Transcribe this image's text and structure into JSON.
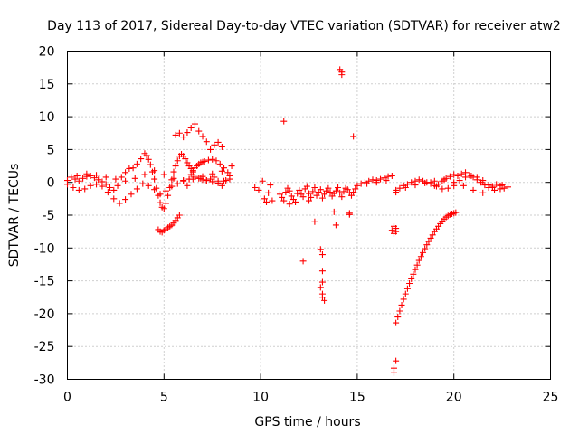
{
  "chart_data": {
    "type": "scatter",
    "title": "Day 113 of 2017, Sidereal Day-to-day VTEC variation (SDTVAR) for receiver atw2",
    "xlabel": "GPS time / hours",
    "ylabel": "SDTVAR / TECUs",
    "xlim": [
      0,
      25
    ],
    "ylim": [
      -30,
      20
    ],
    "xticks": [
      0,
      5,
      10,
      15,
      20,
      25
    ],
    "yticks": [
      -30,
      -25,
      -20,
      -15,
      -10,
      -5,
      0,
      5,
      10,
      15,
      20
    ],
    "grid": true,
    "marker": "+",
    "color": "#ff0000",
    "series": [
      {
        "name": "SDTVAR",
        "x": [
          0.0,
          0.2,
          0.4,
          0.6,
          0.8,
          1.0,
          1.2,
          1.4,
          1.6,
          1.8,
          2.0,
          2.2,
          2.4,
          2.6,
          2.8,
          3.0,
          3.2,
          3.4,
          3.6,
          3.8,
          4.0,
          4.1,
          4.2,
          4.3,
          4.4,
          4.5,
          4.6,
          4.7,
          4.8,
          4.9,
          5.0,
          5.1,
          5.2,
          5.3,
          5.4,
          5.5,
          5.6,
          5.7,
          5.8,
          5.9,
          6.0,
          6.1,
          6.2,
          6.3,
          6.4,
          6.5,
          6.6,
          6.8,
          7.0,
          7.2,
          7.4,
          7.6,
          7.8,
          8.0,
          8.2,
          8.4,
          8.5,
          0.0,
          0.3,
          0.6,
          0.9,
          1.2,
          1.5,
          1.8,
          2.1,
          2.4,
          2.7,
          3.0,
          3.3,
          3.6,
          3.9,
          4.2,
          4.5,
          4.8,
          5.1,
          5.4,
          5.7,
          6.0,
          6.3,
          6.6,
          6.9,
          7.2,
          7.5,
          7.8,
          8.1,
          8.4,
          0.5,
          1.0,
          1.5,
          2.0,
          2.5,
          3.0,
          3.5,
          4.0,
          4.5,
          5.0,
          5.5,
          6.0,
          6.5,
          7.0,
          7.5,
          8.0,
          5.6,
          5.8,
          6.0,
          6.2,
          6.4,
          6.6,
          6.8,
          7.0,
          7.2,
          7.4,
          7.6,
          7.8,
          8.0,
          4.7,
          4.8,
          4.9,
          5.0,
          5.1,
          5.2,
          5.3,
          5.4,
          5.5,
          5.6,
          5.7,
          5.8,
          6.2,
          6.3,
          6.4,
          6.5,
          6.6,
          6.7,
          6.8,
          6.9,
          7.0,
          7.1,
          7.3,
          7.5,
          7.7,
          7.9,
          8.1,
          8.3,
          9.7,
          9.9,
          10.1,
          10.2,
          10.3,
          10.4,
          10.5,
          10.6,
          11.0,
          11.1,
          11.2,
          11.3,
          11.4,
          11.5,
          11.6,
          11.7,
          11.8,
          11.9,
          12.0,
          12.1,
          12.2,
          12.3,
          12.4,
          12.5,
          12.6,
          12.7,
          12.8,
          12.9,
          13.0,
          13.1,
          13.2,
          13.3,
          13.4,
          13.5,
          13.6,
          13.7,
          13.8,
          13.9,
          14.0,
          14.1,
          14.2,
          14.3,
          14.4,
          14.5,
          14.6,
          14.7,
          14.8,
          14.9,
          11.2,
          12.2,
          12.8,
          13.1,
          13.2,
          13.2,
          13.2,
          13.2,
          13.1,
          13.3,
          13.2,
          14.1,
          14.2,
          14.2,
          14.8,
          14.6,
          14.6,
          13.9,
          13.8,
          11.5,
          12.5,
          15.0,
          15.2,
          15.4,
          15.6,
          15.8,
          16.0,
          16.2,
          16.4,
          16.6,
          16.8,
          17.0,
          17.2,
          17.4,
          17.6,
          17.8,
          18.0,
          18.2,
          18.4,
          18.6,
          18.8,
          19.0,
          19.2,
          19.4,
          19.6,
          19.8,
          20.0,
          20.2,
          20.4,
          20.6,
          20.8,
          21.0,
          21.2,
          21.4,
          21.6,
          21.8,
          22.0,
          22.2,
          22.4,
          22.6,
          22.8,
          15.5,
          16.0,
          16.5,
          17.0,
          17.5,
          18.0,
          18.5,
          19.0,
          19.5,
          20.0,
          20.5,
          21.0,
          21.5,
          22.0,
          22.5,
          18.8,
          19.1,
          19.4,
          19.7,
          20.0,
          20.3,
          20.6,
          20.9,
          21.2,
          21.5,
          21.8,
          22.1,
          22.4,
          16.8,
          16.9,
          16.9,
          17.0,
          17.0,
          17.0,
          17.1,
          17.2,
          17.3,
          17.4,
          17.5,
          17.6,
          17.7,
          17.8,
          17.9,
          18.0,
          18.1,
          18.2,
          18.3,
          18.4,
          18.5,
          18.6,
          18.7,
          18.8,
          18.9,
          19.0,
          19.1,
          19.2,
          19.3,
          19.4,
          19.5,
          19.6,
          19.7,
          19.8,
          19.9,
          20.0,
          20.1,
          16.9,
          16.9,
          17.0
        ],
        "y": [
          0.3,
          0.8,
          0.5,
          0.2,
          0.6,
          0.9,
          1.0,
          0.7,
          0.4,
          0.1,
          -0.3,
          -0.8,
          -1.2,
          -0.5,
          0.8,
          1.5,
          2.1,
          2.2,
          2.8,
          3.6,
          4.4,
          4.1,
          3.5,
          2.7,
          1.6,
          0.5,
          -0.9,
          -2.0,
          -3.1,
          -3.8,
          -4.0,
          -3.2,
          -2.0,
          -0.8,
          0.4,
          1.6,
          2.5,
          3.3,
          4.0,
          4.3,
          4.0,
          3.6,
          3.0,
          2.5,
          2.1,
          1.6,
          1.1,
          0.6,
          0.4,
          0.3,
          0.5,
          0.8,
          0.2,
          -0.5,
          0.3,
          1.0,
          2.5,
          -0.3,
          -0.8,
          -1.2,
          -1.0,
          -0.5,
          -0.3,
          -0.6,
          -1.5,
          -2.5,
          -3.2,
          -2.6,
          -1.8,
          -1.0,
          -0.2,
          -0.5,
          -1.1,
          -1.8,
          -1.3,
          -0.6,
          -0.2,
          0.2,
          0.5,
          0.8,
          0.6,
          0.3,
          0.1,
          -0.1,
          0.2,
          0.5,
          1.0,
          1.3,
          1.1,
          0.8,
          0.5,
          0.2,
          0.6,
          1.2,
          1.8,
          1.2,
          0.6,
          0.3,
          0.5,
          0.9,
          1.3,
          1.7,
          7.2,
          7.5,
          6.9,
          7.6,
          8.3,
          8.9,
          7.8,
          7.0,
          6.2,
          5.0,
          5.7,
          6.1,
          5.4,
          -7.2,
          -7.5,
          -7.6,
          -7.3,
          -7.1,
          -6.9,
          -6.7,
          -6.5,
          -6.2,
          -5.8,
          -5.4,
          -5.0,
          -0.5,
          0.5,
          1.2,
          1.8,
          2.2,
          2.5,
          2.8,
          3.0,
          3.1,
          3.2,
          3.4,
          3.5,
          3.3,
          2.8,
          2.2,
          1.5,
          -0.8,
          -1.2,
          0.2,
          -2.5,
          -3.0,
          -1.6,
          -0.4,
          -2.8,
          -1.8,
          -2.3,
          -2.8,
          -1.5,
          -0.9,
          -1.3,
          -2.1,
          -2.6,
          -3.0,
          -1.7,
          -1.2,
          -1.8,
          -2.2,
          -1.0,
          -0.6,
          -1.7,
          -2.3,
          -1.4,
          -0.8,
          -2.0,
          -1.5,
          -1.1,
          -2.4,
          -1.8,
          -1.3,
          -0.9,
          -1.5,
          -2.1,
          -1.7,
          -1.3,
          -0.8,
          -1.6,
          -2.2,
          -1.4,
          -0.9,
          -1.1,
          -1.6,
          -2.0,
          -1.5,
          -1.0,
          9.3,
          -12.0,
          -6.0,
          -10.2,
          -11.0,
          -13.5,
          -15.2,
          -17.5,
          -16.0,
          -18.0,
          -17.0,
          17.2,
          16.8,
          16.4,
          7.0,
          -4.7,
          -4.9,
          -6.5,
          -4.5,
          -3.3,
          -2.8,
          -0.5,
          -0.2,
          0.0,
          0.2,
          0.4,
          0.3,
          0.5,
          0.7,
          0.9,
          1.0,
          -1.2,
          -0.9,
          -0.5,
          -0.3,
          0.0,
          0.2,
          0.4,
          0.2,
          0.0,
          -0.2,
          -0.5,
          -0.3,
          0.2,
          0.6,
          0.9,
          1.2,
          1.0,
          1.3,
          1.5,
          1.1,
          0.8,
          0.4,
          0.0,
          -0.4,
          -0.8,
          -0.6,
          -0.3,
          -0.5,
          -0.9,
          -0.7,
          -0.2,
          0.0,
          0.3,
          -1.5,
          -0.8,
          -0.4,
          -0.1,
          0.2,
          0.4,
          0.0,
          -0.5,
          -1.2,
          -1.6,
          -0.8,
          -0.4,
          0.0,
          -0.6,
          -1.0,
          -0.9,
          -0.5,
          0.3,
          0.8,
          1.0,
          0.8,
          0.3,
          -0.4,
          -1.2,
          -1.0,
          -7.3,
          -7.8,
          -6.7,
          -7.0,
          -7.5,
          -21.4,
          -20.5,
          -19.6,
          -18.7,
          -17.8,
          -17.0,
          -16.2,
          -15.4,
          -14.7,
          -14.0,
          -13.3,
          -12.6,
          -11.9,
          -11.3,
          -10.7,
          -10.1,
          -9.5,
          -9.0,
          -8.5,
          -8.0,
          -7.5,
          -7.1,
          -6.7,
          -6.3,
          -5.9,
          -5.6,
          -5.3,
          -5.1,
          -4.9,
          -4.8,
          -4.7,
          -4.6,
          -29.0,
          -28.3,
          -27.2
        ]
      }
    ]
  }
}
